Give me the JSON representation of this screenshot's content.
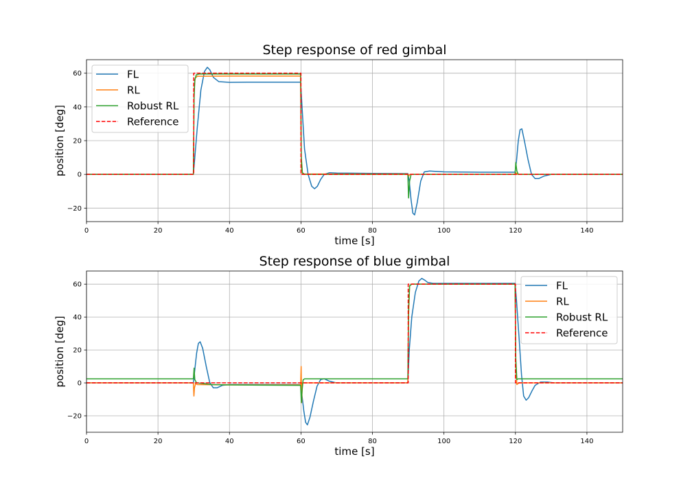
{
  "chart_data": [
    {
      "type": "line",
      "title": "Step response of red gimbal",
      "xlabel": "time [s]",
      "ylabel": "position [deg]",
      "xlim": [
        0,
        150
      ],
      "ylim": [
        -28,
        68
      ],
      "xticks": [
        0,
        20,
        40,
        60,
        80,
        100,
        120,
        140
      ],
      "yticks": [
        -20,
        0,
        20,
        40,
        60
      ],
      "grid": true,
      "legend_position": "upper-left",
      "series": [
        {
          "name": "FL",
          "color": "#1f77b4",
          "style": "solid",
          "points": [
            [
              0,
              0
            ],
            [
              29.9,
              0
            ],
            [
              30.3,
              10
            ],
            [
              31,
              28
            ],
            [
              32,
              50
            ],
            [
              33,
              61
            ],
            [
              33.8,
              63.5
            ],
            [
              34.5,
              62
            ],
            [
              35.5,
              57.5
            ],
            [
              37,
              55
            ],
            [
              40,
              54.6
            ],
            [
              45,
              54.7
            ],
            [
              55,
              54.7
            ],
            [
              59.9,
              54.7
            ],
            [
              60.3,
              40
            ],
            [
              61,
              15
            ],
            [
              62,
              0
            ],
            [
              63,
              -7
            ],
            [
              63.8,
              -8.5
            ],
            [
              64.6,
              -7
            ],
            [
              65.5,
              -3
            ],
            [
              66.5,
              0
            ],
            [
              68,
              1
            ],
            [
              70,
              0.8
            ],
            [
              80,
              0.6
            ],
            [
              89.9,
              0.5
            ],
            [
              90.3,
              -4
            ],
            [
              90.8,
              -15
            ],
            [
              91.3,
              -23
            ],
            [
              91.8,
              -24
            ],
            [
              92.5,
              -17
            ],
            [
              93.5,
              -4
            ],
            [
              94.5,
              1.5
            ],
            [
              96,
              2
            ],
            [
              100,
              1.5
            ],
            [
              110,
              1.3
            ],
            [
              119.9,
              1.3
            ],
            [
              120.3,
              8
            ],
            [
              120.8,
              20
            ],
            [
              121.3,
              26.5
            ],
            [
              121.8,
              27
            ],
            [
              122.5,
              20
            ],
            [
              123.5,
              9
            ],
            [
              124.5,
              0
            ],
            [
              125.5,
              -2.5
            ],
            [
              126.5,
              -2.5
            ],
            [
              128,
              -1
            ],
            [
              130,
              0
            ],
            [
              140,
              0
            ],
            [
              150,
              0
            ]
          ]
        },
        {
          "name": "RL",
          "color": "#ff7f0e",
          "style": "solid",
          "points": [
            [
              0,
              0
            ],
            [
              29.9,
              0
            ],
            [
              30.1,
              50
            ],
            [
              30.4,
              57
            ],
            [
              31,
              58.2
            ],
            [
              40,
              58.3
            ],
            [
              59.9,
              58.3
            ],
            [
              60.1,
              5
            ],
            [
              60.4,
              0.5
            ],
            [
              61,
              0.2
            ],
            [
              89.9,
              0.2
            ],
            [
              90.1,
              -1
            ],
            [
              90.5,
              0
            ],
            [
              119.9,
              0
            ],
            [
              120.1,
              1
            ],
            [
              120.6,
              0
            ],
            [
              150,
              0
            ]
          ]
        },
        {
          "name": "Robust RL",
          "color": "#2ca02c",
          "style": "solid",
          "points": [
            [
              0,
              0
            ],
            [
              29.9,
              0
            ],
            [
              30.1,
              45
            ],
            [
              30.3,
              56
            ],
            [
              30.7,
              59
            ],
            [
              31.5,
              59.5
            ],
            [
              59.9,
              59.5
            ],
            [
              60.1,
              10
            ],
            [
              60.4,
              1
            ],
            [
              61,
              0
            ],
            [
              89.9,
              0
            ],
            [
              90.1,
              -14
            ],
            [
              90.4,
              -4
            ],
            [
              90.8,
              0
            ],
            [
              119.9,
              0
            ],
            [
              120.1,
              7
            ],
            [
              120.4,
              2
            ],
            [
              120.8,
              0
            ],
            [
              150,
              0
            ]
          ]
        },
        {
          "name": "Reference",
          "color": "#ff0000",
          "style": "dashed",
          "points": [
            [
              0,
              0
            ],
            [
              30,
              0
            ],
            [
              30,
              60
            ],
            [
              60,
              60
            ],
            [
              60,
              0
            ],
            [
              150,
              0
            ]
          ]
        }
      ]
    },
    {
      "type": "line",
      "title": "Step response of blue gimbal",
      "xlabel": "time [s]",
      "ylabel": "position [deg]",
      "xlim": [
        0,
        150
      ],
      "ylim": [
        -30,
        68
      ],
      "xticks": [
        0,
        20,
        40,
        60,
        80,
        100,
        120,
        140
      ],
      "yticks": [
        -20,
        0,
        20,
        40,
        60
      ],
      "grid": true,
      "legend_position": "upper-right",
      "series": [
        {
          "name": "FL",
          "color": "#1f77b4",
          "style": "solid",
          "points": [
            [
              0,
              0
            ],
            [
              29.9,
              0
            ],
            [
              30.3,
              8
            ],
            [
              30.8,
              18
            ],
            [
              31.3,
              24
            ],
            [
              31.8,
              25
            ],
            [
              32.5,
              21
            ],
            [
              33.5,
              10
            ],
            [
              34.5,
              0
            ],
            [
              35.5,
              -3
            ],
            [
              36.5,
              -3
            ],
            [
              38,
              -1.5
            ],
            [
              40,
              -1
            ],
            [
              45,
              -1
            ],
            [
              59.9,
              -1
            ],
            [
              60.3,
              -8
            ],
            [
              60.8,
              -17
            ],
            [
              61.3,
              -24
            ],
            [
              61.8,
              -25.5
            ],
            [
              62.5,
              -21
            ],
            [
              63.5,
              -11
            ],
            [
              64.5,
              -2
            ],
            [
              65.5,
              2
            ],
            [
              66.5,
              2.5
            ],
            [
              68,
              1
            ],
            [
              70,
              0
            ],
            [
              80,
              0
            ],
            [
              89.9,
              0
            ],
            [
              90.3,
              20
            ],
            [
              91,
              40
            ],
            [
              92,
              55
            ],
            [
              93,
              62
            ],
            [
              93.8,
              63.5
            ],
            [
              94.6,
              62.5
            ],
            [
              95.5,
              61
            ],
            [
              97,
              60.5
            ],
            [
              100,
              60.5
            ],
            [
              119.9,
              60.5
            ],
            [
              120.3,
              50
            ],
            [
              121,
              28
            ],
            [
              121.7,
              5
            ],
            [
              122.3,
              -8
            ],
            [
              123,
              -10.5
            ],
            [
              123.7,
              -9
            ],
            [
              124.6,
              -5
            ],
            [
              125.5,
              -1.5
            ],
            [
              127,
              0.5
            ],
            [
              129,
              0.5
            ],
            [
              131,
              0
            ],
            [
              150,
              0
            ]
          ]
        },
        {
          "name": "RL",
          "color": "#ff7f0e",
          "style": "solid",
          "points": [
            [
              0,
              0
            ],
            [
              29.9,
              0
            ],
            [
              30.05,
              -8
            ],
            [
              30.2,
              -3
            ],
            [
              30.5,
              -0.5
            ],
            [
              31,
              -1
            ],
            [
              40,
              -1.2
            ],
            [
              59.9,
              -1.2
            ],
            [
              60.05,
              10
            ],
            [
              60.2,
              -12
            ],
            [
              60.4,
              0
            ],
            [
              61,
              0
            ],
            [
              89.9,
              0
            ],
            [
              90.1,
              40
            ],
            [
              90.4,
              59
            ],
            [
              91,
              60
            ],
            [
              119.9,
              60
            ],
            [
              120.1,
              10
            ],
            [
              120.4,
              -1
            ],
            [
              121,
              0
            ],
            [
              150,
              0
            ]
          ]
        },
        {
          "name": "Robust RL",
          "color": "#2ca02c",
          "style": "solid",
          "points": [
            [
              0,
              2.5
            ],
            [
              29.9,
              2.5
            ],
            [
              30.1,
              9
            ],
            [
              30.3,
              2
            ],
            [
              30.8,
              0
            ],
            [
              35,
              -1
            ],
            [
              40,
              -1.2
            ],
            [
              50,
              -1.4
            ],
            [
              59.9,
              -1.5
            ],
            [
              60.1,
              -12
            ],
            [
              60.3,
              -5
            ],
            [
              60.6,
              1.8
            ],
            [
              61,
              2.5
            ],
            [
              89.9,
              2.5
            ],
            [
              90.1,
              45
            ],
            [
              90.4,
              59
            ],
            [
              91,
              60
            ],
            [
              119.9,
              60
            ],
            [
              120.1,
              15
            ],
            [
              120.4,
              2
            ],
            [
              120.8,
              2.5
            ],
            [
              150,
              2.5
            ]
          ]
        },
        {
          "name": "Reference",
          "color": "#ff0000",
          "style": "dashed",
          "points": [
            [
              0,
              0
            ],
            [
              90,
              0
            ],
            [
              90,
              60
            ],
            [
              120,
              60
            ],
            [
              120,
              0
            ],
            [
              150,
              0
            ]
          ]
        }
      ]
    }
  ]
}
